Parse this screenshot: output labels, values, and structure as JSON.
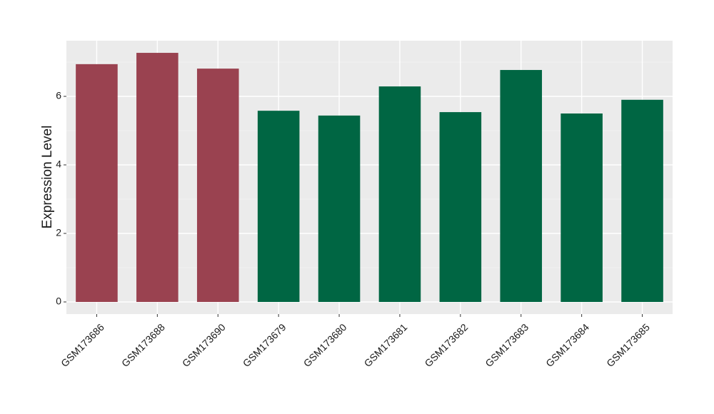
{
  "chart_data": {
    "type": "bar",
    "y_label": "Expression Level",
    "categories": [
      "GSM173686",
      "GSM173688",
      "GSM173690",
      "GSM173679",
      "GSM173680",
      "GSM173681",
      "GSM173682",
      "GSM173683",
      "GSM173684",
      "GSM173685"
    ],
    "values": [
      6.94,
      7.27,
      6.81,
      5.58,
      5.44,
      6.29,
      5.54,
      6.77,
      5.5,
      5.9
    ],
    "colors": [
      "#9a4250",
      "#9a4250",
      "#9a4250",
      "#006643",
      "#006643",
      "#006643",
      "#006643",
      "#006643",
      "#006643",
      "#006643"
    ],
    "ylim": [
      -0.354,
      7.625
    ],
    "yticks": [
      0,
      2,
      4,
      6
    ],
    "minor_yticks": [
      1,
      3,
      5,
      7
    ],
    "grid": true
  }
}
